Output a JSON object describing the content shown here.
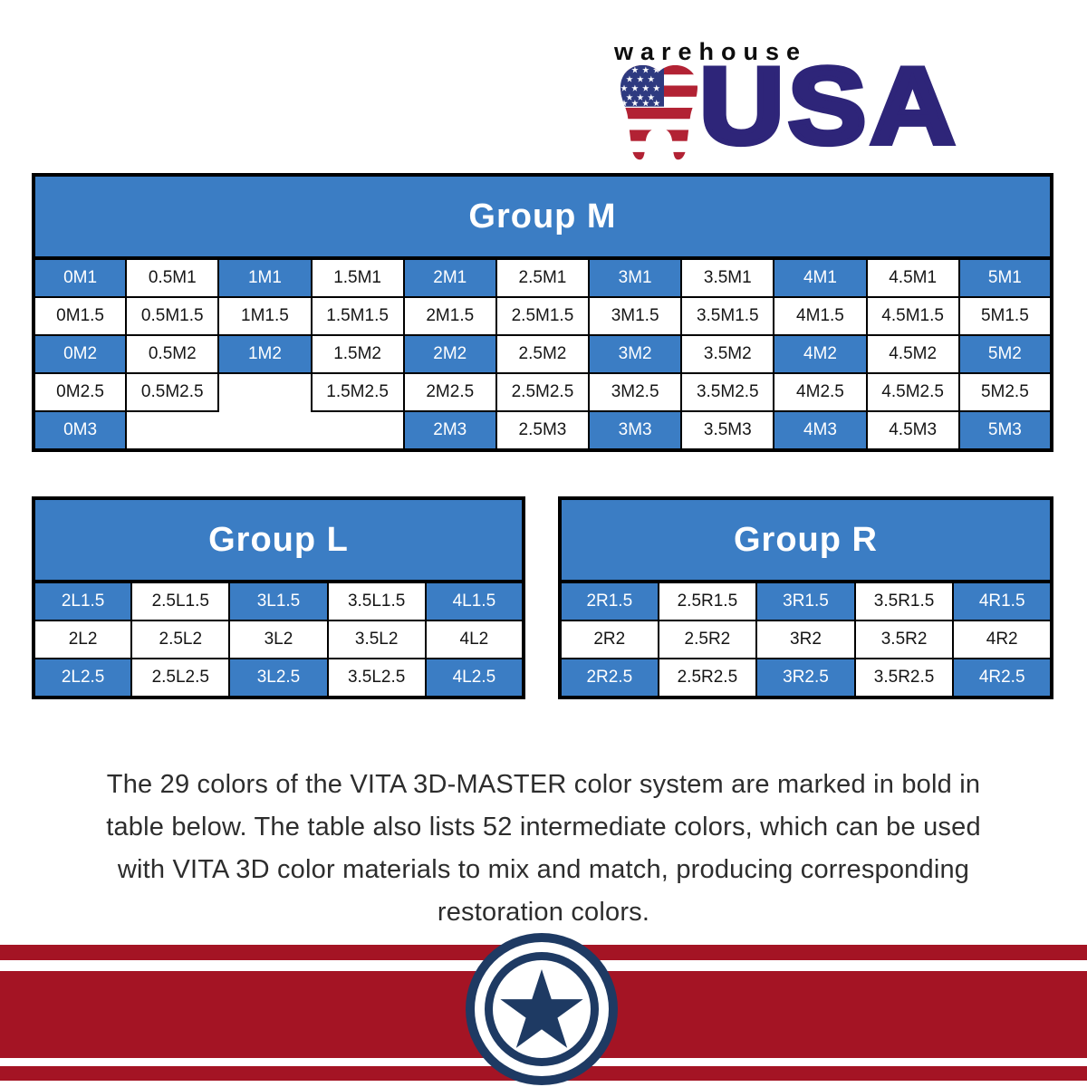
{
  "logo": {
    "wordmark_top": "warehouse",
    "wordmark_main": "USA",
    "star_glyph": "★"
  },
  "colors": {
    "cell_blue": "#3B7DC4",
    "table_border": "#000000",
    "logo_navy": "#2E2579",
    "flag_red": "#B22234",
    "flag_canton_blue": "#2E3A80",
    "footer_red": "#A41424",
    "emblem_navy": "#1E3A63",
    "text_dark": "#2D2D2D"
  },
  "tables": [
    {
      "id": "group-m",
      "title": "Group M",
      "columns": 11,
      "rows": [
        [
          {
            "t": "0M1",
            "s": "b"
          },
          {
            "t": "0.5M1",
            "s": "w"
          },
          {
            "t": "1M1",
            "s": "b"
          },
          {
            "t": "1.5M1",
            "s": "w"
          },
          {
            "t": "2M1",
            "s": "b"
          },
          {
            "t": "2.5M1",
            "s": "w"
          },
          {
            "t": "3M1",
            "s": "b"
          },
          {
            "t": "3.5M1",
            "s": "w"
          },
          {
            "t": "4M1",
            "s": "b"
          },
          {
            "t": "4.5M1",
            "s": "w"
          },
          {
            "t": "5M1",
            "s": "b"
          }
        ],
        [
          {
            "t": "0M1.5",
            "s": "w"
          },
          {
            "t": "0.5M1.5",
            "s": "w"
          },
          {
            "t": "1M1.5",
            "s": "w"
          },
          {
            "t": "1.5M1.5",
            "s": "w"
          },
          {
            "t": "2M1.5",
            "s": "w"
          },
          {
            "t": "2.5M1.5",
            "s": "w"
          },
          {
            "t": "3M1.5",
            "s": "w"
          },
          {
            "t": "3.5M1.5",
            "s": "w"
          },
          {
            "t": "4M1.5",
            "s": "w"
          },
          {
            "t": "4.5M1.5",
            "s": "w"
          },
          {
            "t": "5M1.5",
            "s": "w"
          }
        ],
        [
          {
            "t": "0M2",
            "s": "b"
          },
          {
            "t": "0.5M2",
            "s": "w"
          },
          {
            "t": "1M2",
            "s": "b"
          },
          {
            "t": "1.5M2",
            "s": "w"
          },
          {
            "t": "2M2",
            "s": "b"
          },
          {
            "t": "2.5M2",
            "s": "w"
          },
          {
            "t": "3M2",
            "s": "b"
          },
          {
            "t": "3.5M2",
            "s": "w"
          },
          {
            "t": "4M2",
            "s": "b"
          },
          {
            "t": "4.5M2",
            "s": "w"
          },
          {
            "t": "5M2",
            "s": "b"
          }
        ],
        [
          {
            "t": "0M2.5",
            "s": "w"
          },
          {
            "t": "0.5M2.5",
            "s": "w"
          },
          {
            "t": "",
            "s": "x"
          },
          {
            "t": "1.5M2.5",
            "s": "w"
          },
          {
            "t": "2M2.5",
            "s": "w"
          },
          {
            "t": "2.5M2.5",
            "s": "w"
          },
          {
            "t": "3M2.5",
            "s": "w"
          },
          {
            "t": "3.5M2.5",
            "s": "w"
          },
          {
            "t": "4M2.5",
            "s": "w"
          },
          {
            "t": "4.5M2.5",
            "s": "w"
          },
          {
            "t": "5M2.5",
            "s": "w"
          }
        ],
        [
          {
            "t": "0M3",
            "s": "b"
          },
          {
            "t": "",
            "s": "x",
            "span": 3
          },
          {
            "t": "2M3",
            "s": "b"
          },
          {
            "t": "2.5M3",
            "s": "w"
          },
          {
            "t": "3M3",
            "s": "b"
          },
          {
            "t": "3.5M3",
            "s": "w"
          },
          {
            "t": "4M3",
            "s": "b"
          },
          {
            "t": "4.5M3",
            "s": "w"
          },
          {
            "t": "5M3",
            "s": "b"
          }
        ]
      ]
    },
    {
      "id": "group-l",
      "title": "Group L",
      "columns": 5,
      "rows": [
        [
          {
            "t": "2L1.5",
            "s": "b"
          },
          {
            "t": "2.5L1.5",
            "s": "w"
          },
          {
            "t": "3L1.5",
            "s": "b"
          },
          {
            "t": "3.5L1.5",
            "s": "w"
          },
          {
            "t": "4L1.5",
            "s": "b"
          }
        ],
        [
          {
            "t": "2L2",
            "s": "w"
          },
          {
            "t": "2.5L2",
            "s": "w"
          },
          {
            "t": "3L2",
            "s": "w"
          },
          {
            "t": "3.5L2",
            "s": "w"
          },
          {
            "t": "4L2",
            "s": "w"
          }
        ],
        [
          {
            "t": "2L2.5",
            "s": "b"
          },
          {
            "t": "2.5L2.5",
            "s": "w"
          },
          {
            "t": "3L2.5",
            "s": "b"
          },
          {
            "t": "3.5L2.5",
            "s": "w"
          },
          {
            "t": "4L2.5",
            "s": "b"
          }
        ]
      ]
    },
    {
      "id": "group-r",
      "title": "Group R",
      "columns": 5,
      "rows": [
        [
          {
            "t": "2R1.5",
            "s": "b"
          },
          {
            "t": "2.5R1.5",
            "s": "w"
          },
          {
            "t": "3R1.5",
            "s": "b"
          },
          {
            "t": "3.5R1.5",
            "s": "w"
          },
          {
            "t": "4R1.5",
            "s": "b"
          }
        ],
        [
          {
            "t": "2R2",
            "s": "w"
          },
          {
            "t": "2.5R2",
            "s": "w"
          },
          {
            "t": "3R2",
            "s": "w"
          },
          {
            "t": "3.5R2",
            "s": "w"
          },
          {
            "t": "4R2",
            "s": "w"
          }
        ],
        [
          {
            "t": "2R2.5",
            "s": "b"
          },
          {
            "t": "2.5R2.5",
            "s": "w"
          },
          {
            "t": "3R2.5",
            "s": "b"
          },
          {
            "t": "3.5R2.5",
            "s": "w"
          },
          {
            "t": "4R2.5",
            "s": "b"
          }
        ]
      ]
    }
  ],
  "description": {
    "lines": [
      "The 29 colors of the VITA 3D-MASTER color system are marked in bold in",
      "table below. The table also lists 52 intermediate colors, which can be used",
      "with VITA 3D color materials to mix and match, producing corresponding",
      "restoration colors."
    ]
  }
}
